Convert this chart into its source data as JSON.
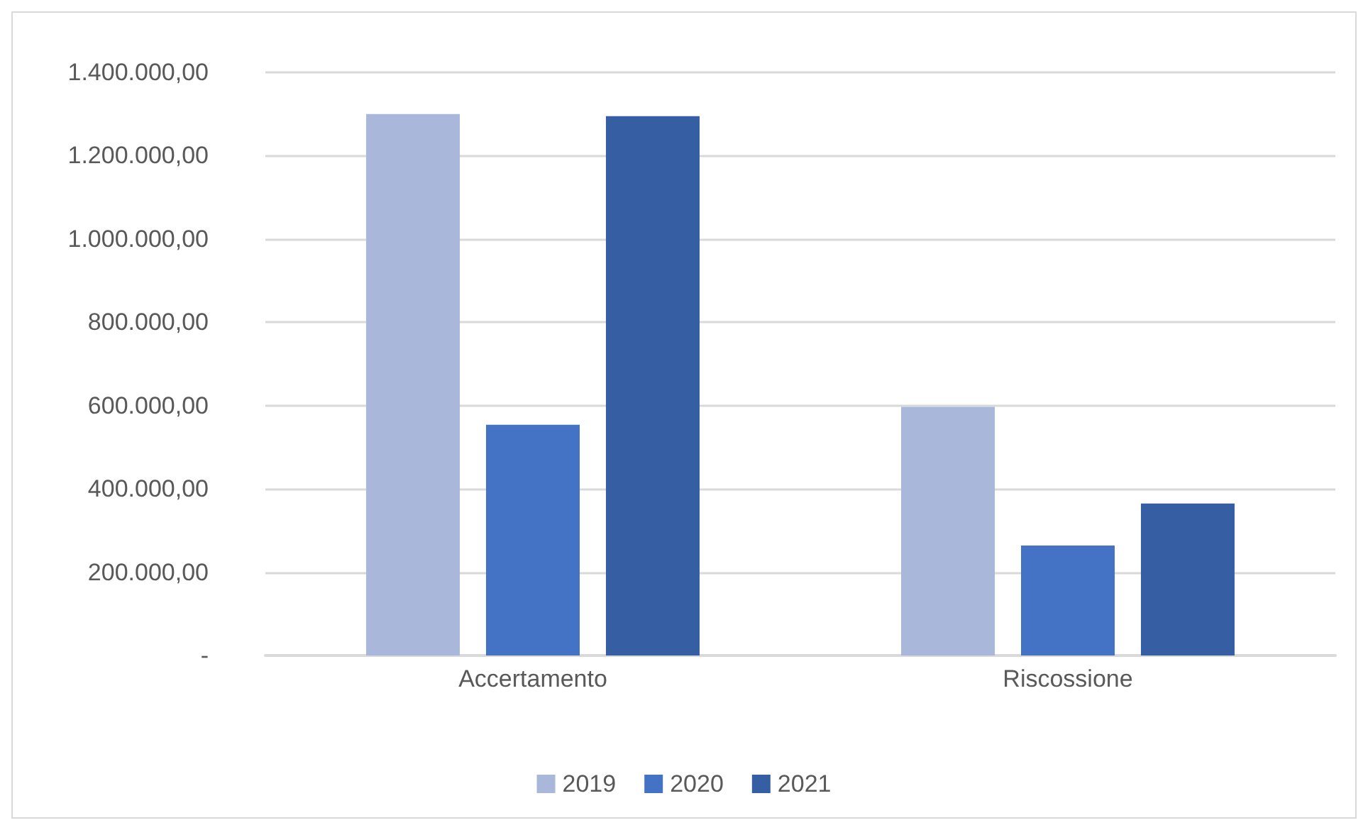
{
  "chart_data": {
    "type": "bar",
    "categories": [
      "Accertamento",
      "Riscossione"
    ],
    "series": [
      {
        "name": "2019",
        "color": "#a9b7da",
        "values": [
          1300000,
          597000
        ]
      },
      {
        "name": "2020",
        "color": "#4472c4",
        "values": [
          554000,
          264000
        ]
      },
      {
        "name": "2021",
        "color": "#365ea2",
        "values": [
          1295000,
          365000
        ]
      }
    ],
    "ylim": [
      0,
      1400000
    ],
    "yticks": [
      {
        "value": 0,
        "label": "-"
      },
      {
        "value": 200000,
        "label": "200.000,00"
      },
      {
        "value": 400000,
        "label": "400.000,00"
      },
      {
        "value": 600000,
        "label": "600.000,00"
      },
      {
        "value": 800000,
        "label": "800.000,00"
      },
      {
        "value": 1000000,
        "label": "1.000.000,00"
      },
      {
        "value": 1200000,
        "label": "1.200.000,00"
      },
      {
        "value": 1400000,
        "label": "1.400.000,00"
      }
    ],
    "grid": "y",
    "legend": "bottom"
  }
}
